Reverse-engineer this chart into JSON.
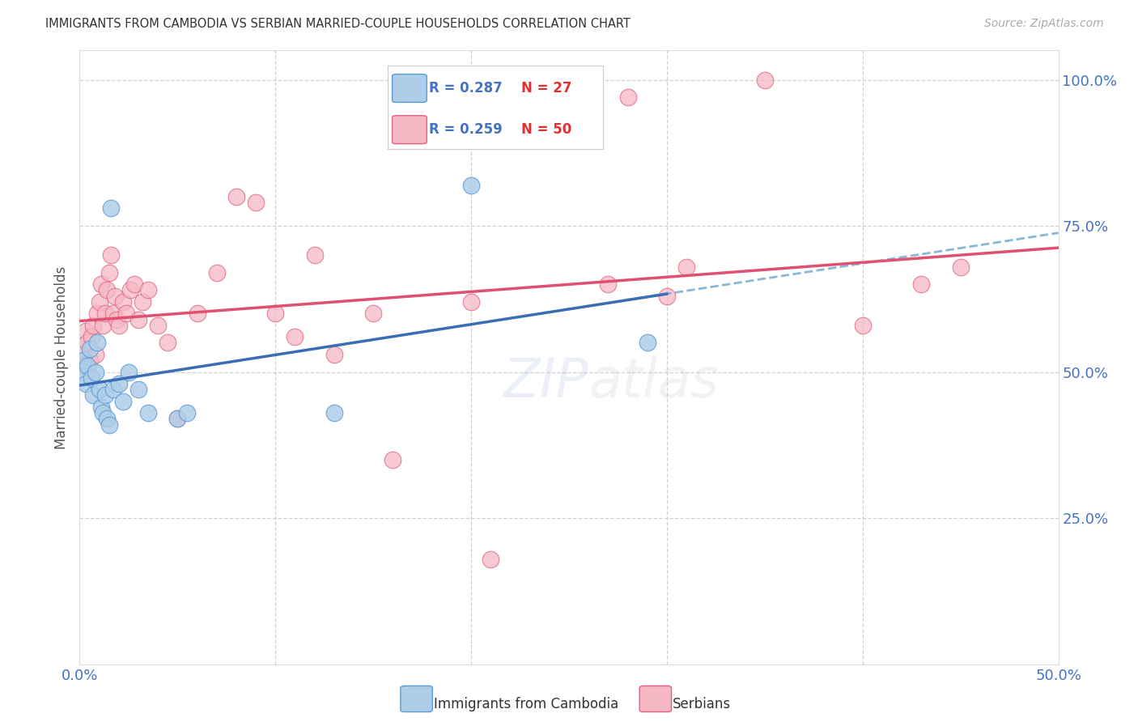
{
  "title": "IMMIGRANTS FROM CAMBODIA VS SERBIAN MARRIED-COUPLE HOUSEHOLDS CORRELATION CHART",
  "source": "Source: ZipAtlas.com",
  "ylabel": "Married-couple Households",
  "xlim": [
    0.0,
    0.5
  ],
  "ylim": [
    0.0,
    1.05
  ],
  "xticks": [
    0.0,
    0.1,
    0.2,
    0.3,
    0.4,
    0.5
  ],
  "xticklabels": [
    "0.0%",
    "",
    "",
    "",
    "",
    "50.0%"
  ],
  "yticks": [
    0.0,
    0.25,
    0.5,
    0.75,
    1.0
  ],
  "yticklabels": [
    "",
    "25.0%",
    "50.0%",
    "75.0%",
    "100.0%"
  ],
  "legend_r1": "R = 0.287",
  "legend_n1": "N = 27",
  "legend_r2": "R = 0.259",
  "legend_n2": "N = 50",
  "blue_scatter_color": "#aecde8",
  "blue_edge_color": "#5b9bd5",
  "pink_scatter_color": "#f5b8c4",
  "pink_edge_color": "#e06080",
  "blue_line_color": "#3b6db5",
  "pink_line_color": "#e05070",
  "dashed_line_color": "#7bafd4",
  "background_color": "#ffffff",
  "cambodia_x": [
    0.001,
    0.002,
    0.003,
    0.004,
    0.005,
    0.006,
    0.007,
    0.008,
    0.009,
    0.01,
    0.011,
    0.012,
    0.013,
    0.014,
    0.015,
    0.016,
    0.017,
    0.02,
    0.022,
    0.025,
    0.03,
    0.035,
    0.05,
    0.055,
    0.13,
    0.2,
    0.29
  ],
  "cambodia_y": [
    0.5,
    0.52,
    0.48,
    0.51,
    0.54,
    0.49,
    0.46,
    0.5,
    0.55,
    0.47,
    0.44,
    0.43,
    0.46,
    0.42,
    0.41,
    0.78,
    0.47,
    0.48,
    0.45,
    0.5,
    0.47,
    0.43,
    0.42,
    0.43,
    0.43,
    0.82,
    0.55
  ],
  "serbian_x": [
    0.001,
    0.002,
    0.003,
    0.004,
    0.005,
    0.006,
    0.007,
    0.008,
    0.009,
    0.01,
    0.011,
    0.012,
    0.013,
    0.014,
    0.015,
    0.016,
    0.017,
    0.018,
    0.019,
    0.02,
    0.022,
    0.024,
    0.026,
    0.028,
    0.03,
    0.032,
    0.035,
    0.04,
    0.045,
    0.05,
    0.06,
    0.07,
    0.08,
    0.09,
    0.1,
    0.11,
    0.12,
    0.13,
    0.15,
    0.16,
    0.2,
    0.21,
    0.27,
    0.28,
    0.3,
    0.31,
    0.35,
    0.4,
    0.43,
    0.45
  ],
  "serbian_y": [
    0.51,
    0.54,
    0.57,
    0.55,
    0.52,
    0.56,
    0.58,
    0.53,
    0.6,
    0.62,
    0.65,
    0.58,
    0.6,
    0.64,
    0.67,
    0.7,
    0.6,
    0.63,
    0.59,
    0.58,
    0.62,
    0.6,
    0.64,
    0.65,
    0.59,
    0.62,
    0.64,
    0.58,
    0.55,
    0.42,
    0.6,
    0.67,
    0.8,
    0.79,
    0.6,
    0.56,
    0.7,
    0.53,
    0.6,
    0.35,
    0.62,
    0.18,
    0.65,
    0.97,
    0.63,
    0.68,
    1.0,
    0.58,
    0.65,
    0.68
  ]
}
